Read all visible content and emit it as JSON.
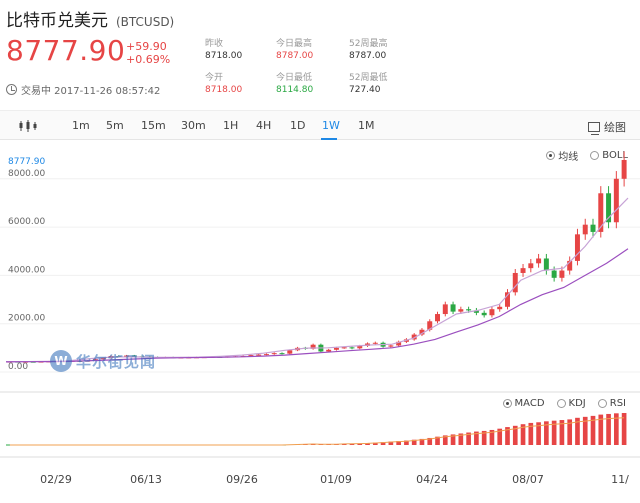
{
  "header": {
    "name": "比特币兑美元",
    "code": "(BTCUSD)",
    "price": "8777.90",
    "change_abs": "+59.90",
    "change_pct": "+0.69%",
    "status": "交易中 2017-11-26 08:57:42"
  },
  "stats": {
    "prev_close_label": "昨收",
    "prev_close": "8718.00",
    "day_high_label": "今日最高",
    "day_high": "8787.00",
    "w52_high_label": "52周最高",
    "w52_high": "8787.00",
    "open_label": "今开",
    "open": "8718.00",
    "day_low_label": "今日最低",
    "day_low": "8114.80",
    "w52_low_label": "52周最低",
    "w52_low": "727.40"
  },
  "toolbar": {
    "periods": [
      "1m",
      "5m",
      "15m",
      "30m",
      "1H",
      "4H",
      "1D",
      "1W",
      "1M"
    ],
    "active_period": "1W",
    "draw_label": "绘图"
  },
  "overlay_options": {
    "ma_label": "均线",
    "boll_label": "BOLL",
    "selected": "均线"
  },
  "indicator_options": {
    "macd_label": "MACD",
    "kdj_label": "KDJ",
    "rsi_label": "RSI",
    "selected": "MACD"
  },
  "watermark": {
    "logo_letter": "W",
    "text": "华尔街见闻"
  },
  "colors": {
    "up": "#e64545",
    "down": "#2aa843",
    "accent": "#1e88e5",
    "ma1": "#c7a3d6",
    "ma2": "#9b4fbf"
  },
  "chart_data": {
    "type": "candlestick",
    "x_tick_labels": [
      "02/29",
      "06/13",
      "09/26",
      "01/09",
      "04/24",
      "08/07",
      "11/"
    ],
    "y_tick_labels": [
      "0.00",
      "2000.00",
      "4000.00",
      "6000.00",
      "8000.00"
    ],
    "ylim": [
      0,
      8777.9
    ],
    "last_price_label": "8777.90",
    "candles": [
      {
        "o": 420,
        "c": 430
      },
      {
        "o": 430,
        "c": 415
      },
      {
        "o": 415,
        "c": 425
      },
      {
        "o": 425,
        "c": 420
      },
      {
        "o": 420,
        "c": 430
      },
      {
        "o": 430,
        "c": 440
      },
      {
        "o": 440,
        "c": 450
      },
      {
        "o": 450,
        "c": 445
      },
      {
        "o": 445,
        "c": 460
      },
      {
        "o": 460,
        "c": 455
      },
      {
        "o": 455,
        "c": 470
      },
      {
        "o": 470,
        "c": 530
      },
      {
        "o": 530,
        "c": 580
      },
      {
        "o": 580,
        "c": 660
      },
      {
        "o": 660,
        "c": 620
      },
      {
        "o": 620,
        "c": 680
      },
      {
        "o": 680,
        "c": 650
      },
      {
        "o": 650,
        "c": 640
      },
      {
        "o": 640,
        "c": 620
      },
      {
        "o": 620,
        "c": 600
      },
      {
        "o": 600,
        "c": 610
      },
      {
        "o": 610,
        "c": 590
      },
      {
        "o": 590,
        "c": 600
      },
      {
        "o": 600,
        "c": 605
      },
      {
        "o": 605,
        "c": 610
      },
      {
        "o": 610,
        "c": 615
      },
      {
        "o": 615,
        "c": 625
      },
      {
        "o": 625,
        "c": 620
      },
      {
        "o": 620,
        "c": 640
      },
      {
        "o": 640,
        "c": 650
      },
      {
        "o": 650,
        "c": 660
      },
      {
        "o": 660,
        "c": 700
      },
      {
        "o": 700,
        "c": 720
      },
      {
        "o": 720,
        "c": 740
      },
      {
        "o": 740,
        "c": 780
      },
      {
        "o": 780,
        "c": 760
      },
      {
        "o": 760,
        "c": 900
      },
      {
        "o": 900,
        "c": 1000
      },
      {
        "o": 1000,
        "c": 960
      },
      {
        "o": 960,
        "c": 1130
      },
      {
        "o": 1130,
        "c": 850
      },
      {
        "o": 850,
        "c": 920
      },
      {
        "o": 920,
        "c": 1000
      },
      {
        "o": 1000,
        "c": 1020
      },
      {
        "o": 1020,
        "c": 980
      },
      {
        "o": 980,
        "c": 1080
      },
      {
        "o": 1080,
        "c": 1180
      },
      {
        "o": 1180,
        "c": 1210
      },
      {
        "o": 1210,
        "c": 1050
      },
      {
        "o": 1050,
        "c": 1100
      },
      {
        "o": 1100,
        "c": 1250
      },
      {
        "o": 1250,
        "c": 1350
      },
      {
        "o": 1350,
        "c": 1550
      },
      {
        "o": 1550,
        "c": 1750
      },
      {
        "o": 1750,
        "c": 2100
      },
      {
        "o": 2100,
        "c": 2400
      },
      {
        "o": 2400,
        "c": 2800
      },
      {
        "o": 2800,
        "c": 2500
      },
      {
        "o": 2500,
        "c": 2600
      },
      {
        "o": 2600,
        "c": 2550
      },
      {
        "o": 2550,
        "c": 2450
      },
      {
        "o": 2450,
        "c": 2350
      },
      {
        "o": 2350,
        "c": 2600
      },
      {
        "o": 2600,
        "c": 2700
      },
      {
        "o": 2700,
        "c": 3300
      },
      {
        "o": 3300,
        "c": 4100
      },
      {
        "o": 4100,
        "c": 4300
      },
      {
        "o": 4300,
        "c": 4500
      },
      {
        "o": 4500,
        "c": 4700
      },
      {
        "o": 4700,
        "c": 4200
      },
      {
        "o": 4200,
        "c": 3900
      },
      {
        "o": 3900,
        "c": 4200
      },
      {
        "o": 4200,
        "c": 4600
      },
      {
        "o": 4600,
        "c": 5700
      },
      {
        "o": 5700,
        "c": 6100
      },
      {
        "o": 6100,
        "c": 5800
      },
      {
        "o": 5800,
        "c": 7400
      },
      {
        "o": 7400,
        "c": 6200
      },
      {
        "o": 6200,
        "c": 8000
      },
      {
        "o": 8000,
        "c": 8778
      }
    ],
    "ma_short": [
      430,
      430,
      445,
      470,
      560,
      620,
      625,
      610,
      605,
      615,
      650,
      700,
      780,
      900,
      990,
      1000,
      1060,
      1120,
      1150,
      1400,
      1900,
      2400,
      2550,
      2800,
      3800,
      4200,
      4300,
      5200,
      6300,
      7200
    ],
    "ma_long": [
      420,
      425,
      430,
      440,
      470,
      500,
      540,
      570,
      590,
      600,
      610,
      630,
      660,
      700,
      760,
      820,
      880,
      940,
      1000,
      1150,
      1350,
      1650,
      1950,
      2300,
      2800,
      3200,
      3500,
      4000,
      4500,
      5100
    ],
    "macd_hist": [
      0,
      0,
      0,
      0,
      0,
      0,
      0,
      0,
      0,
      0,
      0,
      0,
      0,
      0,
      0,
      0,
      0,
      0,
      0,
      0,
      0,
      0,
      0,
      0,
      0,
      0,
      0,
      0,
      0,
      0,
      0,
      0,
      0,
      0,
      0,
      0,
      10,
      20,
      25,
      35,
      30,
      28,
      30,
      40,
      45,
      52,
      60,
      75,
      90,
      110,
      125,
      140,
      165,
      190,
      220,
      260,
      300,
      330,
      360,
      390,
      420,
      440,
      470,
      510,
      560,
      600,
      650,
      690,
      710,
      740,
      760,
      780,
      800,
      850,
      880,
      910,
      950,
      970,
      990,
      1000
    ]
  }
}
